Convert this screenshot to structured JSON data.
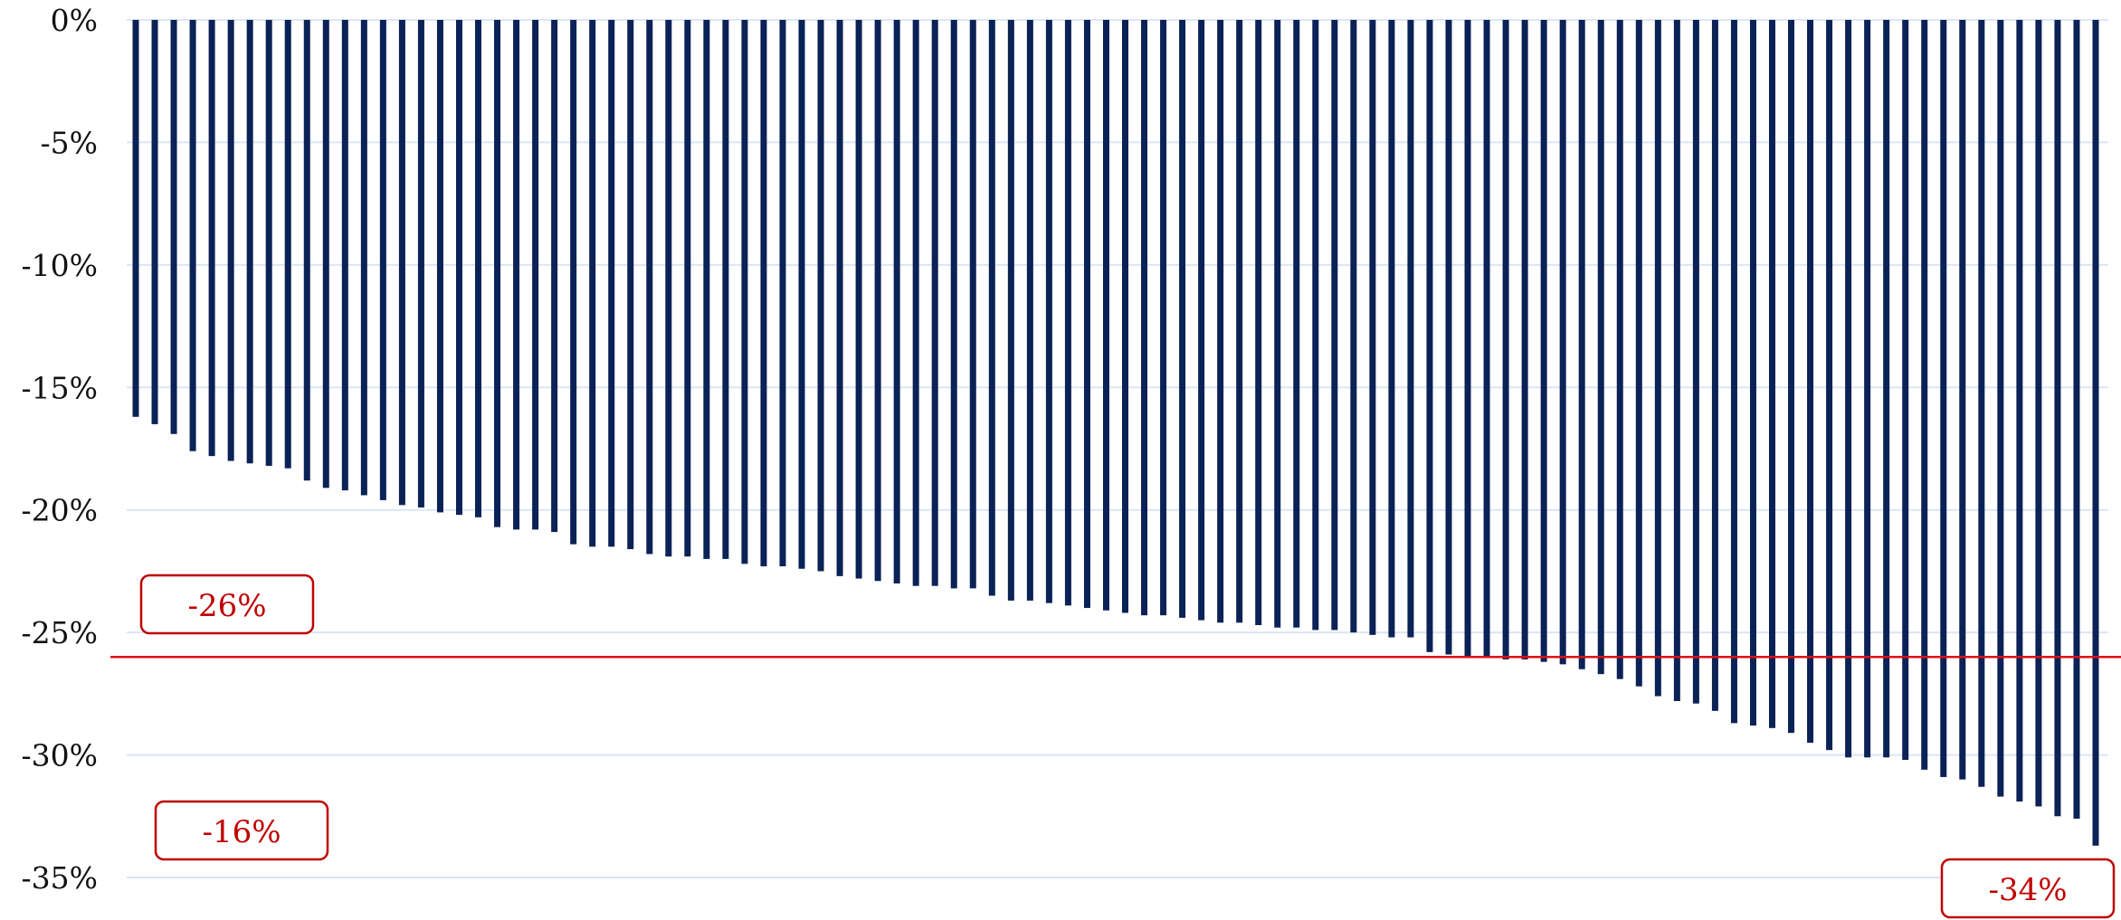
{
  "chart_data": {
    "type": "bar",
    "title": "",
    "xlabel": "",
    "ylabel": "",
    "ylim": [
      -35,
      0
    ],
    "yticks": [
      0,
      -5,
      -10,
      -15,
      -20,
      -25,
      -30,
      -35
    ],
    "ytick_labels": [
      "0%",
      "-5%",
      "-10%",
      "-15%",
      "-20%",
      "-25%",
      "-30%",
      "-35%"
    ],
    "grid": true,
    "series": [
      {
        "values": [
          -16.2,
          -16.5,
          -16.9,
          -17.6,
          -17.8,
          -18.0,
          -18.1,
          -18.2,
          -18.3,
          -18.8,
          -19.1,
          -19.2,
          -19.4,
          -19.6,
          -19.8,
          -19.9,
          -20.1,
          -20.2,
          -20.3,
          -20.7,
          -20.8,
          -20.8,
          -20.9,
          -21.4,
          -21.5,
          -21.5,
          -21.6,
          -21.8,
          -21.9,
          -21.9,
          -22.0,
          -22.0,
          -22.2,
          -22.3,
          -22.3,
          -22.4,
          -22.5,
          -22.7,
          -22.8,
          -22.9,
          -23.0,
          -23.1,
          -23.1,
          -23.2,
          -23.2,
          -23.5,
          -23.7,
          -23.7,
          -23.8,
          -23.9,
          -24.0,
          -24.1,
          -24.2,
          -24.3,
          -24.3,
          -24.4,
          -24.5,
          -24.6,
          -24.6,
          -24.7,
          -24.8,
          -24.8,
          -24.9,
          -24.9,
          -25.0,
          -25.1,
          -25.2,
          -25.2,
          -25.8,
          -25.9,
          -26.0,
          -26.0,
          -26.1,
          -26.1,
          -26.2,
          -26.3,
          -26.5,
          -26.7,
          -26.9,
          -27.2,
          -27.6,
          -27.8,
          -27.9,
          -28.2,
          -28.7,
          -28.8,
          -28.9,
          -29.1,
          -29.5,
          -29.8,
          -30.1,
          -30.1,
          -30.1,
          -30.2,
          -30.6,
          -30.9,
          -31.0,
          -31.3,
          -31.7,
          -31.9,
          -32.1,
          -32.5,
          -32.6,
          -33.7
        ]
      }
    ],
    "bar_color": "#0b2256",
    "reference_line": {
      "value": -26,
      "color": "#dd1111"
    },
    "annotations": [
      {
        "label": "-26%",
        "value": -26
      },
      {
        "label": "-16%",
        "value": -16
      },
      {
        "label": "-34%",
        "value": -34
      }
    ],
    "annotation_color": "#c00000",
    "grid_color": "#dbe5f4"
  }
}
